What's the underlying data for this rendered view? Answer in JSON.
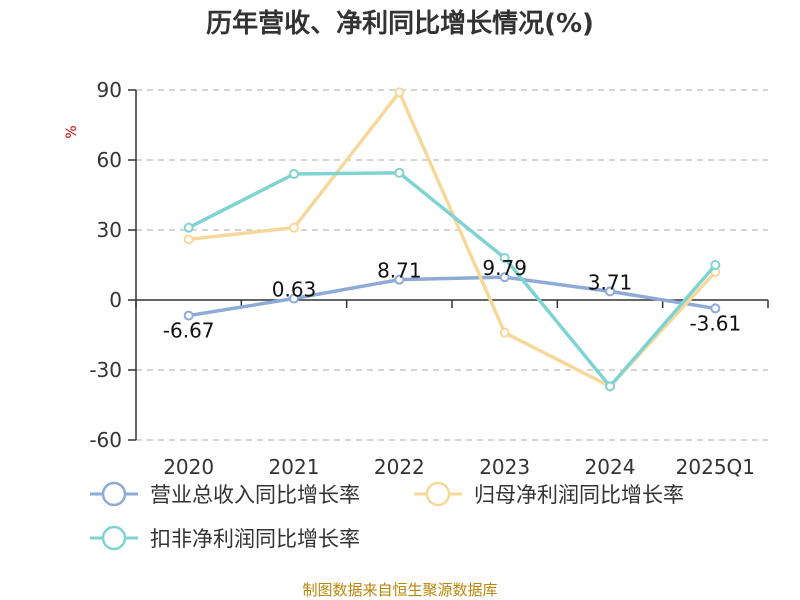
{
  "chart_data": {
    "type": "line",
    "title": "历年营收、净利同比增长情况(%)",
    "ylabel": "%",
    "categories": [
      "2020",
      "2021",
      "2022",
      "2023",
      "2024",
      "2025Q1"
    ],
    "ylim": [
      -60,
      90
    ],
    "yticks": [
      90,
      60,
      30,
      0,
      -30,
      -60
    ],
    "grid": true,
    "legend_position": "bottom",
    "series": [
      {
        "name": "营业总收入同比增长率",
        "color": "#8eaad6",
        "values": [
          -6.67,
          0.63,
          8.71,
          9.79,
          3.71,
          -3.61
        ],
        "labels": [
          "-6.67",
          "0.63",
          "8.71",
          "9.79",
          "3.71",
          "-3.61"
        ]
      },
      {
        "name": "归母净利润同比增长率",
        "color": "#f8d89a",
        "values": [
          26,
          31,
          89,
          -14,
          -37,
          12
        ]
      },
      {
        "name": "扣非净利润同比增长率",
        "color": "#7fd3d3",
        "values": [
          31,
          54,
          54.5,
          18,
          -37,
          15
        ]
      }
    ]
  },
  "footer": {
    "source": "制图数据来自恒生聚源数据库"
  }
}
